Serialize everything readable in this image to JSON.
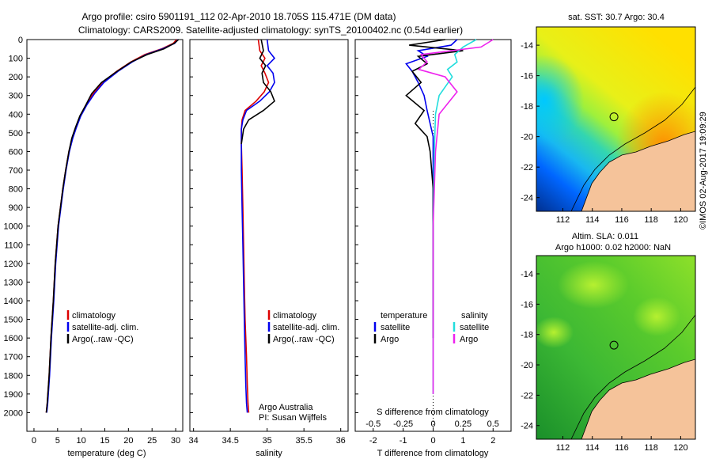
{
  "header": {
    "line1": "Argo profile: csiro 5901191_112 02-Apr-2010 18.705S 115.471E (DM data)",
    "line2": "Climatology: CARS2009. Satellite-adjusted climatology: synTS_20100402.nc (0.54d earlier)"
  },
  "timestamp": "©IMOS 02-Aug-2017 19:09:29",
  "colors": {
    "climatology": "#dd0000",
    "satellite": "#0000ee",
    "argo": "#000000",
    "argo_s": "#ee22ee",
    "satellite_s": "#22dddd",
    "land": "#f5c39a"
  },
  "chart_data": [
    {
      "type": "line",
      "xlabel": "temperature (deg C)",
      "xticks": [
        0,
        5,
        10,
        15,
        20,
        25,
        30
      ],
      "xlim": [
        -1.5,
        31.5
      ],
      "ylim": [
        0,
        2100
      ],
      "yticks": [
        0,
        100,
        200,
        300,
        400,
        500,
        600,
        700,
        800,
        900,
        1000,
        1100,
        1200,
        1300,
        1400,
        1500,
        1600,
        1700,
        1800,
        1900,
        2000
      ],
      "legend": [
        "climatology",
        "satellite-adj. clim.",
        "Argo(..raw -QC)"
      ],
      "series": [
        {
          "name": "climatology",
          "color": "#dd0000",
          "x": [
            30.2,
            29.5,
            27,
            23.5,
            20.5,
            17.5,
            14.5,
            12.5,
            11,
            9.8,
            8.9,
            8.1,
            7.4,
            6.7,
            6.1,
            5.6,
            5.1,
            4.5,
            4.1,
            3.6,
            3.2,
            2.8,
            2.6
          ],
          "y": [
            0,
            20,
            50,
            80,
            120,
            170,
            230,
            290,
            350,
            410,
            470,
            530,
            600,
            700,
            800,
            900,
            1000,
            1200,
            1400,
            1600,
            1800,
            1950,
            2000
          ]
        },
        {
          "name": "satellite-adj. clim.",
          "color": "#0000ee",
          "x": [
            30.5,
            29.8,
            27.2,
            23.8,
            20.8,
            17.8,
            14.8,
            12.8,
            11.2,
            9.9,
            9.0,
            8.2,
            7.5,
            6.8,
            6.2,
            5.7,
            5.2,
            4.6,
            4.2,
            3.7,
            3.3,
            2.9,
            2.7
          ],
          "y": [
            0,
            20,
            50,
            80,
            120,
            170,
            230,
            290,
            350,
            410,
            470,
            530,
            600,
            700,
            800,
            900,
            1000,
            1200,
            1400,
            1600,
            1800,
            1950,
            2000
          ]
        },
        {
          "name": "Argo(..raw -QC)",
          "color": "#000000",
          "x": [
            30.6,
            29.7,
            27.5,
            24,
            20.6,
            17.6,
            14.3,
            12.2,
            11,
            9.7,
            8.8,
            8.0,
            7.4,
            6.7,
            6.1,
            5.6,
            5.1,
            4.5,
            4.1,
            3.6,
            3.2,
            2.8,
            2.6
          ],
          "y": [
            0,
            20,
            50,
            80,
            120,
            170,
            230,
            290,
            350,
            410,
            470,
            530,
            600,
            700,
            800,
            900,
            1000,
            1200,
            1400,
            1600,
            1800,
            1950,
            2000
          ]
        }
      ]
    },
    {
      "type": "line",
      "xlabel": "salinity",
      "xticks": [
        34,
        34.5,
        35,
        35.5,
        36
      ],
      "xticklabels": [
        "34",
        "34.5",
        "35",
        "35.5",
        "36"
      ],
      "xlim": [
        33.95,
        36.1
      ],
      "ylim": [
        0,
        2100
      ],
      "legend": [
        "climatology",
        "satellite-adj. clim.",
        "Argo(..raw -QC)"
      ],
      "annotation": [
        "Argo Australia",
        "PI: Susan Wijffels"
      ],
      "series": [
        {
          "name": "climatology",
          "color": "#dd0000",
          "x": [
            34.88,
            34.9,
            34.97,
            34.92,
            34.97,
            35.02,
            34.96,
            34.85,
            34.7,
            34.66,
            34.65,
            34.65,
            34.66,
            34.67,
            34.68,
            34.69,
            34.7,
            34.72,
            34.73,
            34.74,
            34.75
          ],
          "y": [
            0,
            60,
            100,
            140,
            180,
            230,
            280,
            330,
            380,
            430,
            480,
            560,
            700,
            900,
            1100,
            1300,
            1500,
            1700,
            1850,
            1950,
            2000
          ]
        },
        {
          "name": "satellite-adj. clim.",
          "color": "#0000ee",
          "x": [
            35.0,
            35.02,
            35.1,
            35.0,
            35.08,
            35.1,
            35.03,
            34.9,
            34.72,
            34.67,
            34.65,
            34.65,
            34.65,
            34.66,
            34.67,
            34.68,
            34.69,
            34.7,
            34.71,
            34.72,
            34.73
          ],
          "y": [
            0,
            60,
            100,
            140,
            180,
            230,
            280,
            330,
            380,
            430,
            480,
            560,
            700,
            900,
            1100,
            1300,
            1500,
            1700,
            1850,
            1950,
            2000
          ]
        },
        {
          "name": "Argo(..raw -QC)",
          "color": "#000000",
          "x": [
            34.92,
            34.95,
            34.9,
            34.98,
            34.93,
            34.95,
            35.05,
            35.1,
            34.95,
            34.75,
            34.68,
            34.65
          ],
          "y": [
            0,
            60,
            100,
            140,
            180,
            230,
            280,
            330,
            380,
            430,
            480,
            560
          ]
        }
      ]
    },
    {
      "type": "line",
      "xlabel": "T difference from climatology",
      "xlabel_top": "S difference from climatology",
      "xticks": [
        -2,
        -1,
        0,
        1,
        2
      ],
      "xticks_top": [
        -0.5,
        -0.25,
        0,
        0.25,
        0.5
      ],
      "xlim": [
        -2.6,
        2.6
      ],
      "ylim": [
        0,
        2100
      ],
      "legend_temperature": {
        "title": "temperature",
        "items": [
          "satellite",
          "Argo"
        ]
      },
      "legend_salinity": {
        "title": "salinity",
        "items": [
          "satellite",
          "Argo"
        ]
      },
      "series": [
        {
          "name": "temperature satellite",
          "color": "#0000ee",
          "x": [
            0.8,
            0.6,
            -0.5,
            -0.2,
            -0.9,
            -0.7,
            -0.5,
            -0.3,
            -0.2,
            -0.1,
            0,
            0,
            0,
            0,
            0
          ],
          "y": [
            0,
            30,
            60,
            90,
            130,
            170,
            230,
            300,
            380,
            450,
            520,
            700,
            1000,
            1500,
            1600
          ]
        },
        {
          "name": "temperature Argo",
          "color": "#000000",
          "x": [
            0.4,
            -0.8,
            1.0,
            -0.5,
            -0.2,
            -0.7,
            -0.4,
            -0.9,
            -0.3,
            -0.6,
            -0.2,
            -0.1,
            0,
            0,
            0
          ],
          "y": [
            0,
            30,
            60,
            90,
            130,
            170,
            230,
            300,
            380,
            450,
            520,
            600,
            800,
            1200,
            1600
          ]
        },
        {
          "name": "salinity satellite",
          "color": "#22dddd",
          "x": [
            0.36,
            0.25,
            0.18,
            0.2,
            0.12,
            0.16,
            0.05,
            0.02,
            0.01,
            0,
            0,
            0
          ],
          "y": [
            0,
            40,
            80,
            120,
            160,
            200,
            300,
            400,
            600,
            1000,
            1600,
            1900
          ]
        },
        {
          "name": "salinity Argo",
          "color": "#ee22ee",
          "x": [
            0.5,
            0.4,
            -0.1,
            -0.05,
            -0.12,
            0.1,
            0.2,
            0.05,
            0.02,
            0,
            0,
            0
          ],
          "y": [
            0,
            40,
            80,
            120,
            160,
            200,
            280,
            400,
            600,
            1000,
            1600,
            1900
          ]
        }
      ]
    },
    {
      "type": "heatmap",
      "title": "sat. SST: 30.7  Argo: 30.4",
      "xticks": [
        112,
        114,
        116,
        118,
        120
      ],
      "yticks": [
        -14,
        -16,
        -18,
        -20,
        -22,
        -24
      ],
      "xlim": [
        110.2,
        121
      ],
      "ylim": [
        -24.9,
        -12.8
      ],
      "marker": {
        "lon": 115.47,
        "lat": -18.7
      }
    },
    {
      "type": "heatmap",
      "title": "Altim. SLA: 0.011",
      "subtitle": "Argo h1000: 0.02  h2000: NaN",
      "xticks": [
        112,
        114,
        116,
        118,
        120
      ],
      "yticks": [
        -14,
        -16,
        -18,
        -20,
        -22,
        -24
      ],
      "xlim": [
        110.2,
        121
      ],
      "ylim": [
        -24.9,
        -12.8
      ],
      "marker": {
        "lon": 115.47,
        "lat": -18.7
      }
    }
  ]
}
